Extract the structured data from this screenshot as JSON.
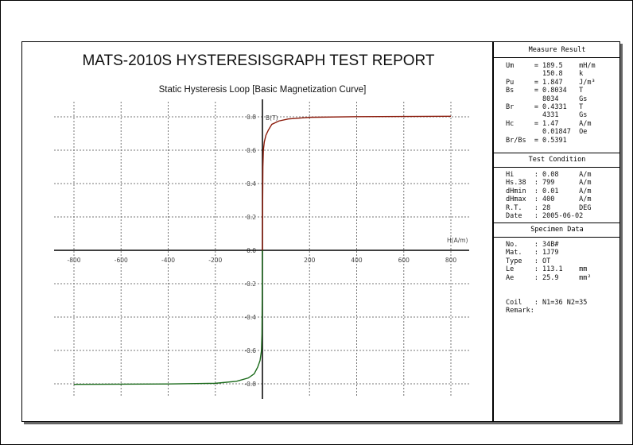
{
  "report": {
    "title": "MATS-2010S HYSTERESISGRAPH TEST REPORT",
    "subtitle": "Static Hysteresis Loop [Basic Magnetization Curve]"
  },
  "measure_result": {
    "header": "Measure Result",
    "lines": [
      "Um     = 189.5    mH/m",
      "         150.8    k",
      "Pu     = 1.847    J/m³",
      "Bs     = 0.8034   T",
      "         8034     Gs",
      "Br     = 0.4331   T",
      "         4331     Gs",
      "Hc     = 1.47     A/m",
      "         0.01847  Oe",
      "Br/Bs  = 0.5391"
    ]
  },
  "test_condition": {
    "header": "Test Condition",
    "lines": [
      "Hi     : 0.08     A/m",
      "Hs.38  : 799      A/m",
      "dHmin  : 0.01     A/m",
      "dHmax  : 400      A/m",
      "R.T.   : 28       DEG",
      "Date   : 2005-06-02"
    ]
  },
  "specimen_data": {
    "header": "Specimen Data",
    "lines": [
      "No.    : 34B#",
      "Mat.   : 1J79",
      "Type   : OT",
      "Le     : 113.1    mm",
      "Ae     : 25.9     mm²",
      "",
      "",
      "Coil   : N1=36 N2=35",
      "Remark:"
    ]
  },
  "chart_data": {
    "type": "line",
    "xlabel": "H(A/m)",
    "ylabel": "B(T)",
    "xlim": [
      -900,
      900
    ],
    "ylim": [
      -0.9,
      0.9
    ],
    "x_ticks": [
      "-800",
      "-600",
      "-400",
      "-200",
      "0",
      "200",
      "400",
      "600",
      "800"
    ],
    "y_ticks": [
      "0.8",
      "0.6",
      "0.4",
      "0.2",
      "0.0",
      "-0.2",
      "-0.4",
      "-0.6",
      "-0.8"
    ],
    "grid": true,
    "series": [
      {
        "color": "#8b1a0a",
        "points": [
          [
            0,
            0
          ],
          [
            1,
            0.3
          ],
          [
            2,
            0.5
          ],
          [
            4,
            0.6
          ],
          [
            8,
            0.65
          ],
          [
            15,
            0.69
          ],
          [
            25,
            0.72
          ],
          [
            40,
            0.755
          ],
          [
            70,
            0.775
          ],
          [
            110,
            0.787
          ],
          [
            200,
            0.797
          ],
          [
            400,
            0.801
          ],
          [
            800,
            0.8034
          ]
        ]
      },
      {
        "color": "#1a6a1a",
        "points": [
          [
            0,
            0
          ],
          [
            -1,
            -0.3
          ],
          [
            -2,
            -0.5
          ],
          [
            -4,
            -0.6
          ],
          [
            -10,
            -0.66
          ],
          [
            -20,
            -0.7
          ],
          [
            -35,
            -0.74
          ],
          [
            -60,
            -0.765
          ],
          [
            -110,
            -0.785
          ],
          [
            -200,
            -0.797
          ],
          [
            -400,
            -0.801
          ],
          [
            -800,
            -0.8034
          ]
        ]
      }
    ]
  }
}
